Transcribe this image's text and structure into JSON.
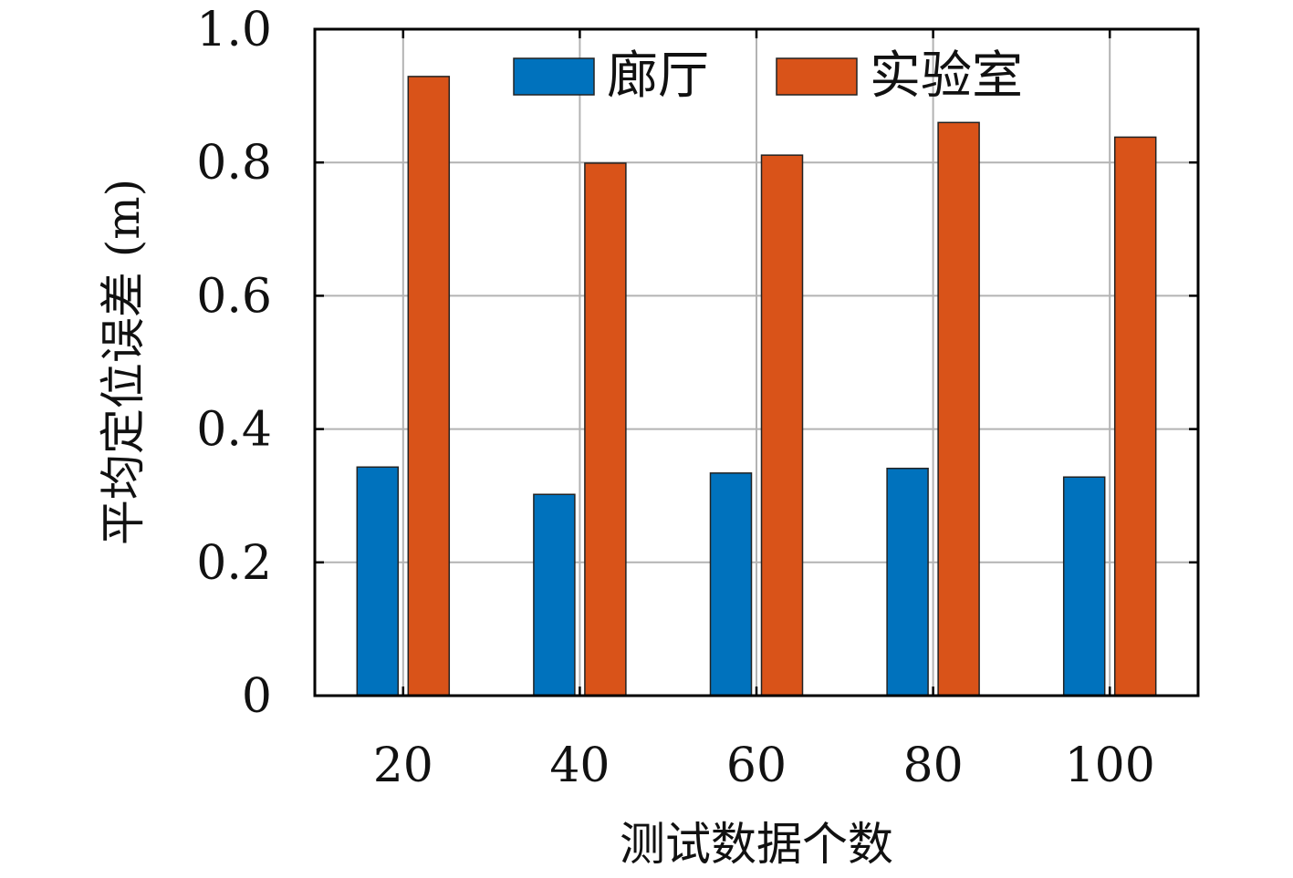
{
  "chart_data": {
    "type": "bar",
    "title": "",
    "xlabel": "测试数据个数",
    "ylabel": "平均定位误差 (m)",
    "categories": [
      "20",
      "40",
      "60",
      "80",
      "100"
    ],
    "series": [
      {
        "name": "廊厅",
        "values": [
          0.343,
          0.302,
          0.334,
          0.341,
          0.328
        ],
        "color": "#0072BD"
      },
      {
        "name": "实验室",
        "values": [
          0.929,
          0.799,
          0.811,
          0.86,
          0.838
        ],
        "color": "#D95319"
      }
    ],
    "ylim": [
      0,
      1.0
    ],
    "yticks": [
      0,
      0.2,
      0.4,
      0.6,
      0.8,
      1.0
    ],
    "ytick_labels": [
      "0",
      "0.2",
      "0.4",
      "0.6",
      "0.8",
      "1.0"
    ],
    "grid": true,
    "legend": "top, horizontal"
  }
}
